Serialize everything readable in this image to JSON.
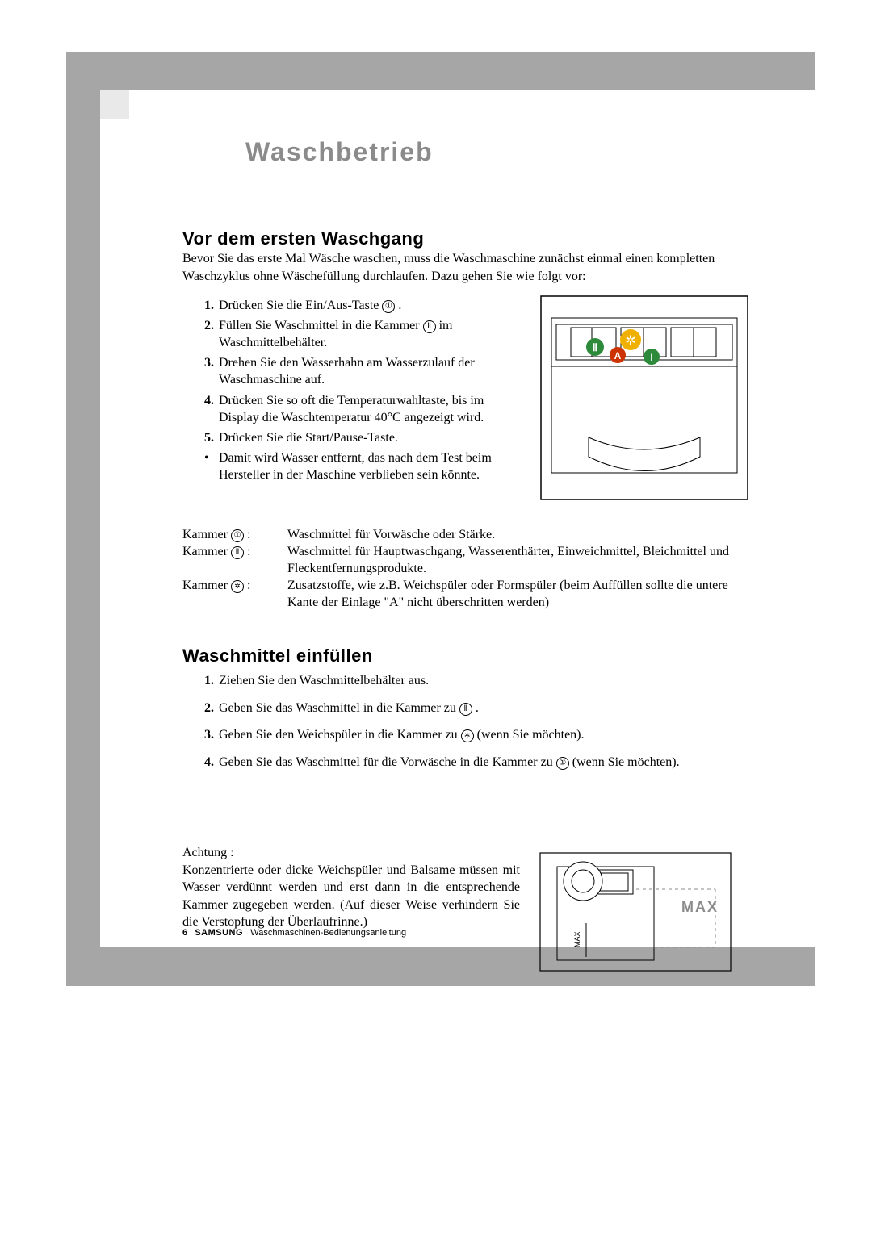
{
  "frame_color": "#a6a6a6",
  "notch_color": "#e9e9e9",
  "page_title": "Waschbetrieb",
  "page_title_color": "#8b8b8c",
  "sec1": {
    "heading": "Vor dem ersten Waschgang",
    "intro": "Bevor Sie das erste Mal Wäsche waschen, muss die Waschmaschine zunächst einmal einen kompletten Waschzyklus ohne Wäschefüllung durchlaufen. Dazu gehen Sie wie folgt vor:",
    "items": [
      {
        "num": "1.",
        "text_a": "Drücken Sie die Ein/Aus-Taste ",
        "glyph": "①",
        "text_b": " ."
      },
      {
        "num": "2.",
        "text_a": "Füllen Sie Waschmittel in die Kammer ",
        "glyph": "Ⅱ",
        "text_b": " im Waschmittelbehälter."
      },
      {
        "num": "3.",
        "text_a": "Drehen Sie den Wasserhahn am Wasserzulauf der Waschmaschine auf.",
        "glyph": "",
        "text_b": ""
      },
      {
        "num": "4.",
        "text_a": "Drücken Sie so oft die Temperaturwahltaste, bis im Display die Waschtemperatur 40°C angezeigt wird.",
        "glyph": "",
        "text_b": ""
      },
      {
        "num": "5.",
        "text_a": "Drücken Sie die Start/Pause-Taste.",
        "glyph": "",
        "text_b": ""
      },
      {
        "num": "•",
        "bullet": true,
        "text_a": "Damit wird Wasser entfernt, das nach dem Test beim Hersteller in der Maschine verblieben sein könnte.",
        "glyph": "",
        "text_b": ""
      }
    ],
    "kammer": [
      {
        "label": "Kammer ",
        "glyph": "①",
        "colon": " :",
        "text": "Waschmittel für Vorwäsche oder Stärke."
      },
      {
        "label": "Kammer ",
        "glyph": "Ⅱ",
        "colon": " :",
        "text": "Waschmittel für Hauptwaschgang, Wasserenthärter, Einweichmittel, Bleichmittel und Fleckentfernungsprodukte."
      },
      {
        "label": "Kammer ",
        "glyph": "✲",
        "colon": " :",
        "text": "Zusatzstoffe, wie z.B. Weichspüler oder Formspüler (beim Auffüllen sollte die untere Kante der Einlage \"A\" nicht überschritten werden)"
      }
    ]
  },
  "sec2": {
    "heading": "Waschmittel einfüllen",
    "items": [
      {
        "num": "1.",
        "text_a": "Ziehen Sie den Waschmittelbehälter aus.",
        "glyph": "",
        "text_b": ""
      },
      {
        "num": "2.",
        "text_a": "Geben Sie das Waschmittel in die Kammer zu ",
        "glyph": "Ⅱ",
        "text_b": " ."
      },
      {
        "num": "3.",
        "text_a": "Geben Sie den Weichspüler in die Kammer zu ",
        "glyph": "✲",
        "text_b": " (wenn Sie möchten)."
      },
      {
        "num": "4.",
        "text_a": "Geben Sie das Waschmittel für die Vorwäsche in die Kammer zu ",
        "glyph": "①",
        "text_b": " (wenn Sie möchten)."
      }
    ],
    "achtung_label": "Achtung :",
    "achtung_text": "Konzentrierte oder dicke Weichspüler und Balsame müssen mit Wasser verdünnt werden und erst dann in die entsprechende Kammer zugegeben werden. (Auf dieser Weise verhindern Sie die Verstopfung der Überlaufrinne.)"
  },
  "footer": {
    "page": "6",
    "brand": "SAMSUNG",
    "suffix": "Waschmaschinen-Bedienungsanleitung"
  },
  "fig1": {
    "label_II": "Ⅱ",
    "label_A": "A",
    "label_I": "I",
    "snow_color": "#f0b000",
    "circle_red": "#cc3300",
    "circle_green": "#2d8a3a"
  },
  "fig2": {
    "max_label": "MAX",
    "max_inner": "MAX",
    "max_color": "#8b8b8c",
    "dash": "4,4"
  }
}
